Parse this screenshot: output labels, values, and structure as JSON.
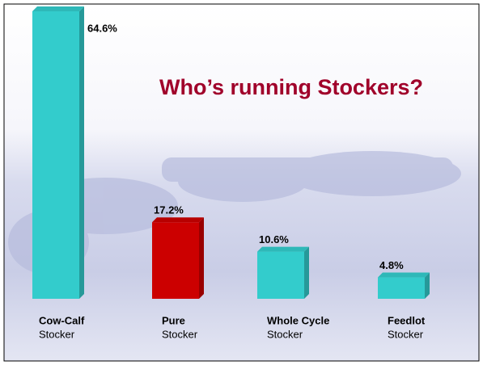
{
  "chart_data": {
    "type": "bar",
    "title": "Who’s running Stockers?",
    "categories": [
      [
        "Cow-Calf",
        "Stocker"
      ],
      [
        "Pure",
        "Stocker"
      ],
      [
        "Whole Cycle",
        "Stocker"
      ],
      [
        "Feedlot",
        "Stocker"
      ]
    ],
    "values": [
      64.6,
      17.2,
      10.6,
      4.8
    ],
    "value_labels": [
      "64.6%",
      "17.2%",
      "10.6%",
      "4.8%"
    ],
    "colors": [
      "#33cccc",
      "#cc0000",
      "#33cccc",
      "#33cccc"
    ]
  }
}
